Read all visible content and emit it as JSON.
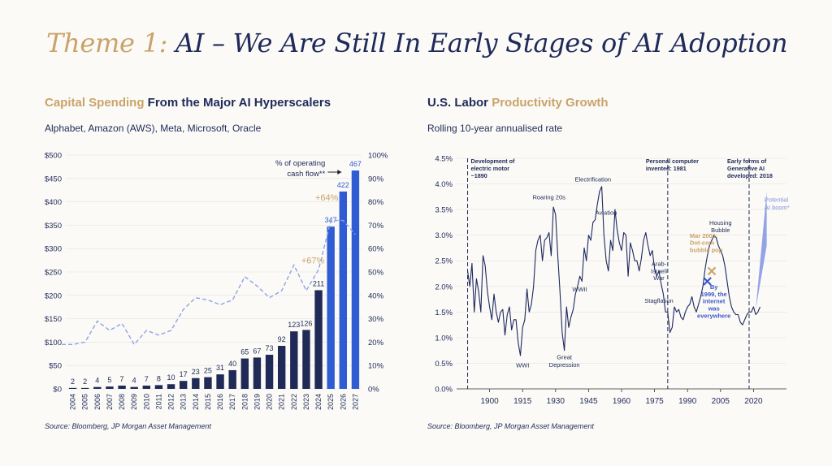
{
  "page": {
    "title_highlight": "Theme 1:",
    "title_rest": " AI – We Are Still In Early Stages of AI Adoption"
  },
  "left": {
    "title_highlight": "Capital Spending",
    "title_rest": " From the Major AI Hyperscalers",
    "subtitle": "Alphabet, Amazon (AWS), Meta, Microsoft, Oracle",
    "source": "Source: Bloomberg, JP Morgan Asset Management"
  },
  "right": {
    "title_prefix": "U.S. Labor ",
    "title_highlight": "Productivity Growth",
    "subtitle": "Rolling 10-year annualised rate",
    "source": "Source: Bloomberg, JP Morgan Asset Management"
  },
  "colors": {
    "navy": "#1e2a5a",
    "bar_dark": "#1f2a56",
    "bar_forecast": "#2f5bd3",
    "line_dashed": "#8fa3e8",
    "gold": "#c9a36a",
    "blue_annot": "#3d56c9",
    "potential_fill": "#7f93e4"
  },
  "chart_data": [
    {
      "type": "bar",
      "categories": [
        "2004",
        "2005",
        "2006",
        "2007",
        "2008",
        "2009",
        "2010",
        "2011",
        "2012",
        "2013",
        "2014",
        "2015",
        "2016",
        "2017",
        "2018",
        "2019",
        "2020",
        "2021",
        "2022",
        "2023",
        "2024",
        "2025",
        "2026",
        "2027"
      ],
      "series": [
        {
          "values": [
            2,
            2,
            4,
            5,
            7,
            4,
            7,
            8,
            10,
            17,
            23,
            25,
            31,
            40,
            65,
            67,
            73,
            92,
            123,
            126,
            211,
            347,
            422,
            467
          ]
        },
        {
          "name": "% of operating cash flow**",
          "axis": "right",
          "values": [
            19,
            20,
            29,
            25,
            28,
            19,
            25,
            23,
            25,
            34,
            39,
            38,
            36,
            38,
            48,
            44,
            39,
            42,
            53,
            42,
            51,
            72,
            72,
            66
          ]
        }
      ],
      "forecast_from": "2025",
      "ylim": [
        0,
        500
      ],
      "yticks": [
        "$0",
        "$50",
        "$100",
        "$150",
        "$200",
        "$250",
        "$300",
        "$350",
        "$400",
        "$450",
        "$500"
      ],
      "y2lim": [
        0,
        100
      ],
      "y2ticks": [
        "0%",
        "10%",
        "20%",
        "30%",
        "40%",
        "50%",
        "60%",
        "70%",
        "80%",
        "90%",
        "100%"
      ],
      "annotations": [
        {
          "text": "+64%",
          "at": "2025"
        },
        {
          "text": "+67%",
          "at": "2024"
        },
        {
          "text": "% of operating",
          "at": "2025"
        },
        {
          "text": "cash flow**",
          "at": "2025"
        }
      ]
    },
    {
      "type": "line",
      "x": [
        1890,
        1891,
        1892,
        1893,
        1894,
        1895,
        1896,
        1897,
        1898,
        1899,
        1900,
        1901,
        1902,
        1903,
        1904,
        1905,
        1906,
        1907,
        1908,
        1909,
        1910,
        1911,
        1912,
        1913,
        1914,
        1915,
        1916,
        1917,
        1918,
        1919,
        1920,
        1921,
        1922,
        1923,
        1924,
        1925,
        1926,
        1927,
        1928,
        1929,
        1930,
        1931,
        1932,
        1933,
        1934,
        1935,
        1936,
        1937,
        1938,
        1939,
        1940,
        1941,
        1942,
        1943,
        1944,
        1945,
        1946,
        1947,
        1948,
        1949,
        1950,
        1951,
        1952,
        1953,
        1954,
        1955,
        1956,
        1957,
        1958,
        1959,
        1960,
        1961,
        1962,
        1963,
        1964,
        1965,
        1966,
        1967,
        1968,
        1969,
        1970,
        1971,
        1972,
        1973,
        1974,
        1975,
        1976,
        1977,
        1978,
        1979,
        1980,
        1981,
        1982,
        1983,
        1984,
        1985,
        1986,
        1987,
        1988,
        1989,
        1990,
        1991,
        1992,
        1993,
        1994,
        1995,
        1996,
        1997,
        1998,
        1999,
        2000,
        2001,
        2002,
        2003,
        2004,
        2005,
        2006,
        2007,
        2008,
        2009,
        2010,
        2011,
        2012,
        2013,
        2014,
        2015,
        2016,
        2017,
        2018,
        2019,
        2020,
        2021,
        2022,
        2023
      ],
      "y": [
        2.3,
        2.0,
        2.45,
        1.5,
        2.15,
        1.9,
        1.5,
        2.6,
        2.4,
        1.9,
        1.6,
        1.35,
        1.85,
        1.5,
        1.3,
        1.5,
        1.55,
        1.05,
        1.45,
        1.6,
        1.15,
        1.35,
        1.35,
        0.9,
        0.65,
        1.2,
        1.35,
        1.95,
        1.5,
        1.65,
        2.0,
        2.7,
        2.9,
        3.0,
        2.5,
        2.9,
        2.95,
        3.05,
        2.6,
        3.55,
        3.4,
        2.6,
        1.9,
        1.1,
        0.75,
        1.6,
        1.2,
        1.4,
        1.55,
        1.85,
        2.0,
        2.2,
        2.1,
        2.75,
        2.5,
        3.0,
        2.9,
        3.25,
        3.3,
        3.6,
        3.85,
        3.95,
        3.0,
        2.5,
        2.3,
        2.9,
        2.7,
        3.5,
        3.1,
        2.85,
        2.7,
        3.05,
        3.0,
        2.2,
        2.85,
        2.7,
        2.5,
        2.5,
        2.3,
        2.55,
        2.9,
        3.05,
        2.8,
        2.6,
        2.7,
        2.35,
        2.2,
        2.3,
        2.05,
        1.85,
        1.5,
        1.5,
        1.1,
        1.2,
        1.6,
        1.5,
        1.55,
        1.4,
        1.35,
        1.5,
        1.6,
        1.65,
        1.8,
        1.6,
        1.5,
        1.65,
        1.8,
        2.0,
        2.35,
        2.6,
        2.8,
        2.9,
        3.0,
        2.95,
        2.8,
        2.7,
        2.6,
        2.4,
        2.1,
        1.8,
        1.6,
        1.5,
        1.45,
        1.45,
        1.3,
        1.25,
        1.35,
        1.45,
        1.5,
        1.5,
        1.6,
        1.45,
        1.5,
        1.6
      ],
      "ylim": [
        0,
        4.5
      ],
      "yticks": [
        "0.0%",
        "0.5%",
        "1.0%",
        "1.5%",
        "2.0%",
        "2.5%",
        "3.0%",
        "3.5%",
        "4.0%",
        "4.5%"
      ],
      "xlim": [
        1885,
        2035
      ],
      "xticks": [
        "1900",
        "1915",
        "1930",
        "1945",
        "1960",
        "1975",
        "1990",
        "2005",
        "2020"
      ],
      "vlines": [
        1890,
        1981,
        2018
      ],
      "vline_labels": [
        [
          "Development of",
          "electric motor",
          "~1890"
        ],
        [
          "Personal computer",
          "invented: 1981"
        ],
        [
          "Early forms of",
          "Generative AI",
          "developed: 2018"
        ]
      ],
      "annotations": [
        {
          "text": "Electrification",
          "x": 1947,
          "y": 4.05
        },
        {
          "text": "Roaring 20s",
          "x": 1927,
          "y": 3.7
        },
        {
          "text": "Aviation",
          "x": 1953,
          "y": 3.4
        },
        {
          "text": "WWII",
          "x": 1941,
          "y": 1.9
        },
        {
          "text": "WWI",
          "x": 1915,
          "y": 0.42
        },
        {
          "text": "Great",
          "x": 1934,
          "y": 0.58
        },
        {
          "text": "Depression",
          "x": 1934,
          "y": 0.43
        },
        {
          "text": "Arab-",
          "x": 1977,
          "y": 2.4
        },
        {
          "text": "Israeli",
          "x": 1977,
          "y": 2.26
        },
        {
          "text": "War",
          "x": 1977,
          "y": 2.12
        },
        {
          "text": "Stagflation",
          "x": 1977,
          "y": 1.68
        },
        {
          "text": "Housing",
          "x": 2005,
          "y": 3.2
        },
        {
          "text": "Bubble",
          "x": 2005,
          "y": 3.06
        },
        {
          "text": "Mar 2001:",
          "x": 1991,
          "y": 2.95
        },
        {
          "text": "Dot-com",
          "x": 1991,
          "y": 2.81
        },
        {
          "text": "bubble pop",
          "x": 1991,
          "y": 2.67
        },
        {
          "text": "By",
          "x": 2002,
          "y": 1.95
        },
        {
          "text": "1999, the",
          "x": 2002,
          "y": 1.81
        },
        {
          "text": "internet",
          "x": 2002,
          "y": 1.67
        },
        {
          "text": "was",
          "x": 2002,
          "y": 1.53
        },
        {
          "text": "everywhere",
          "x": 2002,
          "y": 1.39
        },
        {
          "text": "Potential",
          "x": 2025,
          "y": 3.65
        },
        {
          "text": "AI boom*",
          "x": 2025,
          "y": 3.5
        }
      ],
      "markers": [
        {
          "x": 2001,
          "y": 2.3,
          "label": "dot-com",
          "color": "gold"
        },
        {
          "x": 1999,
          "y": 2.1,
          "label": "internet",
          "color": "blue"
        }
      ],
      "potential_ai_boom": {
        "from_x": 2021,
        "from_y": 1.55,
        "to_x": 2026,
        "to_y_low": 2.8,
        "to_y_high": 3.85
      }
    }
  ]
}
